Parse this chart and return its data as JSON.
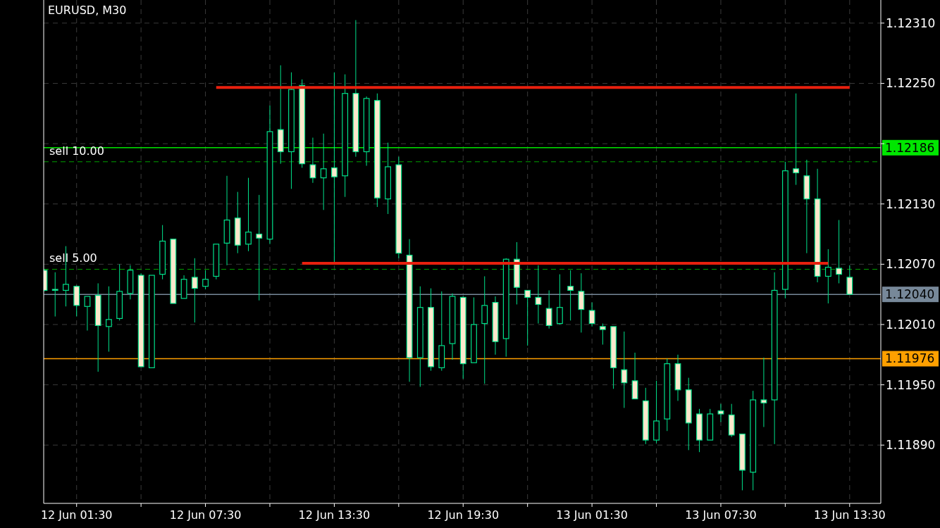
{
  "chart_data": {
    "type": "candlestick",
    "title": "EURUSD, M30",
    "categories": [
      null,
      null,
      null,
      "12 Jun 01:30",
      null,
      null,
      null,
      null,
      null,
      null,
      null,
      null,
      null,
      null,
      null,
      "12 Jun 07:30",
      null,
      null,
      null,
      null,
      null,
      null,
      null,
      null,
      null,
      null,
      null,
      "12 Jun 13:30",
      null,
      null,
      null,
      null,
      null,
      null,
      null,
      null,
      null,
      null,
      null,
      "12 Jun 19:30",
      null,
      null,
      null,
      null,
      null,
      null,
      null,
      null,
      null,
      null,
      null,
      "13 Jun 01:30",
      null,
      null,
      null,
      null,
      null,
      null,
      null,
      null,
      null,
      null,
      null,
      "13 Jun 07:30",
      null,
      null,
      null,
      null,
      null,
      null,
      null,
      null,
      null,
      null,
      null,
      "13 Jun 13:30"
    ],
    "ohlc": [
      [
        1.12064,
        1.12065,
        1.12043,
        1.12044
      ],
      [
        1.12045,
        1.12062,
        1.12018,
        1.12044
      ],
      [
        1.12044,
        1.12088,
        1.12028,
        1.1205
      ],
      [
        1.12048,
        1.12049,
        1.12018,
        1.12029
      ],
      [
        1.12028,
        1.12038,
        1.12004,
        1.12038
      ],
      [
        1.12039,
        1.12051,
        1.11963,
        1.12009
      ],
      [
        1.12008,
        1.12048,
        1.11983,
        1.12015
      ],
      [
        1.12016,
        1.1207,
        1.12014,
        1.12043
      ],
      [
        1.12041,
        1.12069,
        1.12035,
        1.12064
      ],
      [
        1.12059,
        1.12061,
        1.11968,
        1.11968
      ],
      [
        1.11967,
        1.12059,
        1.11967,
        1.12059
      ],
      [
        1.1206,
        1.12109,
        1.12055,
        1.12093
      ],
      [
        1.12095,
        1.12095,
        1.12031,
        1.12031
      ],
      [
        1.12036,
        1.12059,
        1.12036,
        1.12055
      ],
      [
        1.12057,
        1.12076,
        1.12012,
        1.12046
      ],
      [
        1.12048,
        1.12064,
        1.12045,
        1.12055
      ],
      [
        1.12058,
        1.1209,
        1.12055,
        1.1209
      ],
      [
        1.12091,
        1.12158,
        1.12069,
        1.12114
      ],
      [
        1.12116,
        1.12142,
        1.12081,
        1.12089
      ],
      [
        1.1209,
        1.12156,
        1.12083,
        1.12102
      ],
      [
        1.121,
        1.12139,
        1.12034,
        1.12096
      ],
      [
        1.12095,
        1.12228,
        1.1209,
        1.12202
      ],
      [
        1.12204,
        1.12268,
        1.1217,
        1.12182
      ],
      [
        1.12182,
        1.12261,
        1.12145,
        1.12244
      ],
      [
        1.12248,
        1.12254,
        1.12166,
        1.1217
      ],
      [
        1.12169,
        1.12196,
        1.12151,
        1.12156
      ],
      [
        1.12156,
        1.122,
        1.12124,
        1.12165
      ],
      [
        1.12166,
        1.12261,
        1.12072,
        1.12157
      ],
      [
        1.12158,
        1.12259,
        1.12137,
        1.1224
      ],
      [
        1.1224,
        1.12313,
        1.12177,
        1.12182
      ],
      [
        1.12182,
        1.12237,
        1.12168,
        1.12235
      ],
      [
        1.12233,
        1.1224,
        1.12127,
        1.12136
      ],
      [
        1.12135,
        1.12191,
        1.1212,
        1.12167
      ],
      [
        1.12169,
        1.12177,
        1.12076,
        1.12081
      ],
      [
        1.12079,
        1.12095,
        1.11953,
        1.11977
      ],
      [
        1.11977,
        1.12048,
        1.11948,
        1.12027
      ],
      [
        1.12027,
        1.12046,
        1.11964,
        1.11968
      ],
      [
        1.11967,
        1.12043,
        1.11964,
        1.11989
      ],
      [
        1.11991,
        1.12041,
        1.11975,
        1.12038
      ],
      [
        1.12037,
        1.12038,
        1.11956,
        1.11971
      ],
      [
        1.11972,
        1.12037,
        1.11972,
        1.1201
      ],
      [
        1.12011,
        1.12058,
        1.11951,
        1.12029
      ],
      [
        1.12032,
        1.12038,
        1.1198,
        1.11993
      ],
      [
        1.11996,
        1.12076,
        1.11978,
        1.12075
      ],
      [
        1.12075,
        1.12092,
        1.1203,
        1.12047
      ],
      [
        1.12044,
        1.12044,
        1.11989,
        1.12037
      ],
      [
        1.12037,
        1.12069,
        1.12011,
        1.1203
      ],
      [
        1.12026,
        1.12044,
        1.12006,
        1.12009
      ],
      [
        1.12011,
        1.1206,
        1.1201,
        1.12027
      ],
      [
        1.12048,
        1.12064,
        1.12014,
        1.12044
      ],
      [
        1.12043,
        1.12061,
        1.12002,
        1.12025
      ],
      [
        1.12024,
        1.12032,
        1.12008,
        1.12011
      ],
      [
        1.12008,
        1.12011,
        1.1199,
        1.12005
      ],
      [
        1.12008,
        1.12008,
        1.11946,
        1.11967
      ],
      [
        1.11965,
        1.12003,
        1.11927,
        1.11952
      ],
      [
        1.11954,
        1.11982,
        1.11936,
        1.11936
      ],
      [
        1.11934,
        1.11947,
        1.11891,
        1.11895
      ],
      [
        1.11895,
        1.11954,
        1.11892,
        1.11914
      ],
      [
        1.11916,
        1.11976,
        1.11904,
        1.11971
      ],
      [
        1.11971,
        1.1198,
        1.11934,
        1.11945
      ],
      [
        1.11945,
        1.11957,
        1.11885,
        1.11912
      ],
      [
        1.11921,
        1.11926,
        1.11883,
        1.11895
      ],
      [
        1.11895,
        1.11926,
        1.11895,
        1.11921
      ],
      [
        1.11924,
        1.11931,
        1.11913,
        1.11921
      ],
      [
        1.1192,
        1.11931,
        1.11898,
        1.119
      ],
      [
        1.11901,
        1.11901,
        1.11845,
        1.11865
      ],
      [
        1.11863,
        1.11944,
        1.11845,
        1.11935
      ],
      [
        1.11935,
        1.11977,
        1.11908,
        1.11932
      ],
      [
        1.11935,
        1.12062,
        1.11891,
        1.12044
      ],
      [
        1.12045,
        1.12172,
        1.12036,
        1.12163
      ],
      [
        1.12165,
        1.1224,
        1.12149,
        1.12161
      ],
      [
        1.12158,
        1.12174,
        1.12081,
        1.12135
      ],
      [
        1.12135,
        1.12165,
        1.12052,
        1.12058
      ],
      [
        1.12058,
        1.12085,
        1.12031,
        1.12067
      ],
      [
        1.12066,
        1.12114,
        1.12051,
        1.1206
      ],
      [
        1.12057,
        1.12069,
        1.1204,
        1.1204
      ]
    ],
    "color": "#00e08a",
    "colors": [
      "#fde8cc",
      "#fde8cc",
      "#000000",
      "#fde8cc",
      "#000000",
      "#fde8cc",
      "#000000",
      "#000000",
      "#000000",
      "#fde8cc",
      "#000000",
      "#000000",
      "#fde8cc",
      "#000000",
      "#fde8cc",
      "#000000",
      "#000000",
      "#000000",
      "#fde8cc",
      "#000000",
      "#fde8cc",
      "#000000",
      "#fde8cc",
      "#000000",
      "#fde8cc",
      "#fde8cc",
      "#000000",
      "#fde8cc",
      "#000000",
      "#fde8cc",
      "#000000",
      "#fde8cc",
      "#000000",
      "#fde8cc",
      "#fde8cc",
      "#000000",
      "#fde8cc",
      "#000000",
      "#000000",
      "#fde8cc",
      "#000000",
      "#000000",
      "#fde8cc",
      "#000000",
      "#fde8cc",
      "#fde8cc",
      "#fde8cc",
      "#fde8cc",
      "#000000",
      "#fde8cc",
      "#fde8cc",
      "#fde8cc",
      "#fde8cc",
      "#fde8cc",
      "#fde8cc",
      "#fde8cc",
      "#fde8cc",
      "#000000",
      "#000000",
      "#fde8cc",
      "#fde8cc",
      "#fde8cc",
      "#000000",
      "#fde8cc",
      "#fde8cc",
      "#fde8cc",
      "#000000",
      "#fde8cc",
      "#000000",
      "#000000",
      "#fde8cc",
      "#fde8cc",
      "#fde8cc",
      "#000000",
      "#fde8cc",
      "#fde8cc"
    ],
    "series": [
      {
        "type": "line",
        "color": "#e8200e",
        "values": [
          null,
          null,
          null,
          null,
          null,
          null,
          null,
          null,
          null,
          null,
          null,
          null,
          null,
          null,
          null,
          null,
          1.12246,
          1.12246,
          1.12246,
          1.12246,
          1.12246,
          1.12246,
          1.12246,
          1.12246,
          1.12246,
          1.12246,
          1.12246,
          1.12246,
          1.12246,
          1.12246,
          1.12246,
          1.12246,
          1.12246,
          1.12246,
          1.12246,
          1.12246,
          1.12246,
          1.12246,
          1.12246,
          1.12246,
          1.12246,
          1.12246,
          1.12246,
          1.12246,
          1.12246,
          1.12246,
          1.12246,
          1.12246,
          1.12246,
          1.12246,
          1.12246,
          1.12246,
          1.12246,
          1.12246,
          1.12246,
          1.12246,
          1.12246,
          1.12246,
          1.12246,
          1.12246,
          1.12246,
          1.12246,
          1.12246,
          1.12246,
          1.12246,
          1.12246,
          1.12246,
          1.12246,
          1.12246,
          1.12246,
          1.12246,
          1.12246,
          1.12246,
          1.12246,
          1.12246,
          1.12246
        ]
      },
      {
        "type": "line",
        "color": "#e8200e",
        "values": [
          null,
          null,
          null,
          null,
          null,
          null,
          null,
          null,
          null,
          null,
          null,
          null,
          null,
          null,
          null,
          null,
          null,
          null,
          null,
          null,
          null,
          null,
          null,
          null,
          1.12071,
          1.12071,
          1.12071,
          1.12071,
          1.12071,
          1.12071,
          1.12071,
          1.12071,
          1.12071,
          1.12071,
          1.12071,
          1.12071,
          1.12071,
          1.12071,
          1.12071,
          1.12071,
          1.12071,
          1.12071,
          1.12071,
          1.12071,
          1.12071,
          1.12071,
          1.12071,
          1.12071,
          1.12071,
          1.12071,
          1.12071,
          1.12071,
          1.12071,
          1.12071,
          1.12071,
          1.12071,
          1.12071,
          1.12071,
          1.12071,
          1.12071,
          1.12071,
          1.12071,
          1.12071,
          1.12071,
          1.12071,
          1.12071,
          1.12071,
          1.12071,
          1.12071,
          1.12071,
          1.12071,
          1.12071,
          1.12071,
          1.12071,
          null,
          null
        ]
      }
    ],
    "ref_lines": [
      {
        "axis": "y",
        "value": 1.12186,
        "label": "1.12186",
        "color": "#00e600",
        "line_style": "solid"
      },
      {
        "axis": "y",
        "value": 1.12172,
        "label": "sell 10.00",
        "color": "#00a000",
        "line_style": "dashed"
      },
      {
        "axis": "y",
        "value": 1.12065,
        "label": "sell 5.00",
        "color": "#00a000",
        "line_style": "dashed"
      },
      {
        "axis": "y",
        "value": 1.1204,
        "label": "1.12040",
        "color": "#778899",
        "line_style": "solid"
      },
      {
        "axis": "y",
        "value": 1.11976,
        "label": "1.11976",
        "color": "#ffa000",
        "line_style": "solid"
      }
    ],
    "ylim": [
      1.11832,
      1.12333
    ],
    "yticks": [
      {
        "value": 1.1189,
        "label": "1.11890"
      },
      {
        "value": 1.1195,
        "label": "1.11950"
      },
      {
        "value": 1.1201,
        "label": "1.12010"
      },
      {
        "value": 1.1207,
        "label": "1.12070"
      },
      {
        "value": 1.1213,
        "label": "1.12130"
      },
      {
        "value": 1.1219,
        "label": null
      },
      {
        "value": 1.1225,
        "label": "1.12250"
      },
      {
        "value": 1.1231,
        "label": "1.12310"
      }
    ],
    "grid": true,
    "line_style": "solid",
    "marker": "none"
  }
}
